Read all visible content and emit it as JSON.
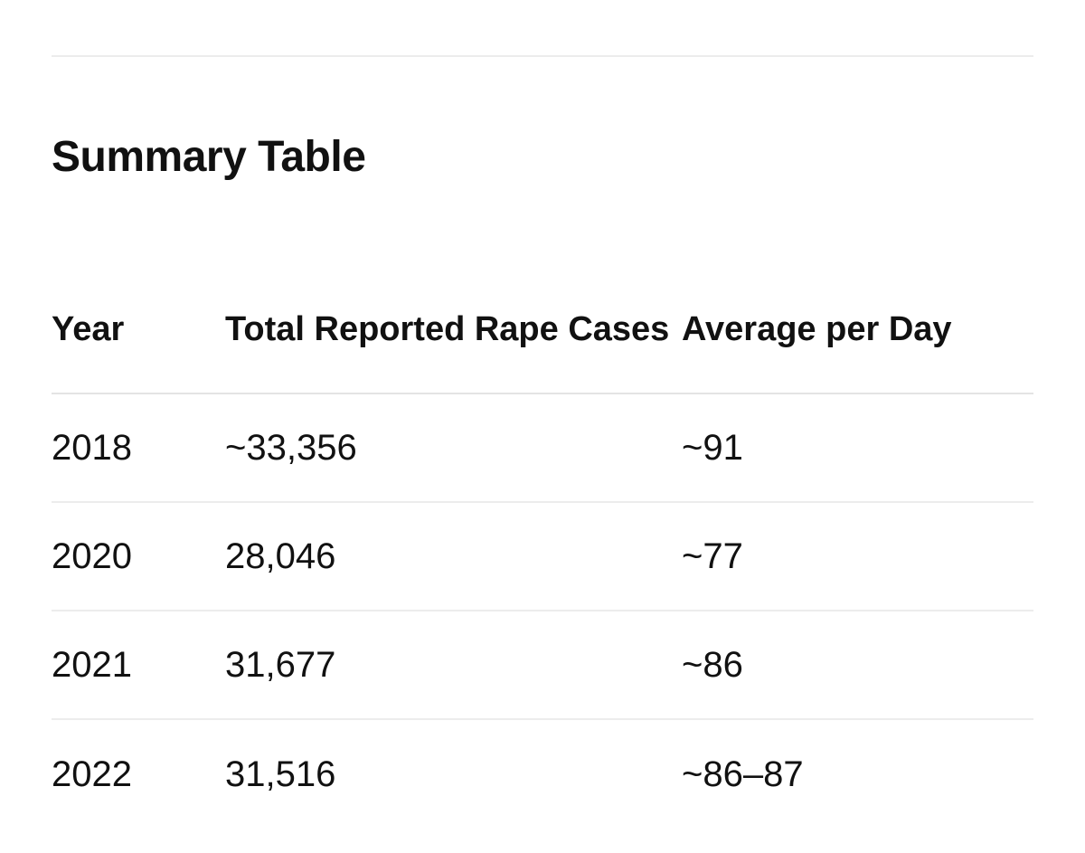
{
  "section": {
    "title": "Summary Table"
  },
  "table": {
    "headers": {
      "year": "Year",
      "cases": "Total Reported Rape Cases",
      "average": "Average per Day"
    },
    "rows": [
      {
        "year": "2018",
        "cases": "~33,356",
        "average": "~91"
      },
      {
        "year": "2020",
        "cases": "28,046",
        "average": "~77"
      },
      {
        "year": "2021",
        "cases": "31,677",
        "average": "~86"
      },
      {
        "year": "2022",
        "cases": "31,516",
        "average": "~86–87"
      }
    ]
  }
}
